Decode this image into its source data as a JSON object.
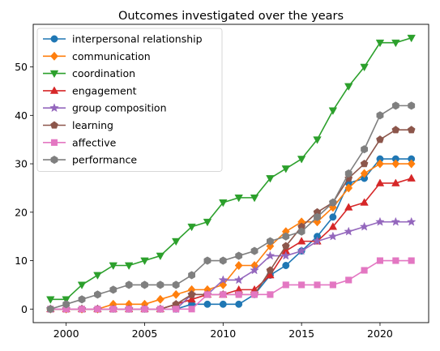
{
  "chart_data": {
    "type": "line",
    "title": "Outcomes investigated over the years",
    "xlabel": "",
    "ylabel": "",
    "xlim": [
      1997.9,
      2023.1
    ],
    "ylim": [
      -2.8,
      58.8
    ],
    "x_ticks": [
      2000,
      2005,
      2010,
      2015,
      2020
    ],
    "y_ticks": [
      0,
      10,
      20,
      30,
      40,
      50
    ],
    "grid": false,
    "legend_position": "upper-left",
    "x": [
      1999,
      2000,
      2001,
      2002,
      2003,
      2004,
      2005,
      2006,
      2007,
      2008,
      2009,
      2010,
      2011,
      2012,
      2013,
      2014,
      2015,
      2016,
      2017,
      2018,
      2019,
      2020,
      2021,
      2022
    ],
    "series": [
      {
        "name": "interpersonal relationship",
        "color": "#1f77b4",
        "marker": "circle",
        "values": [
          0,
          0,
          0,
          0,
          0,
          0,
          0,
          0,
          0,
          1,
          1,
          1,
          1,
          3,
          7,
          9,
          12,
          15,
          19,
          26,
          27,
          31,
          31,
          31
        ]
      },
      {
        "name": "communication",
        "color": "#ff7f0e",
        "marker": "diamond",
        "values": [
          0,
          0,
          0,
          0,
          1,
          1,
          1,
          2,
          3,
          4,
          4,
          5,
          9,
          9,
          13,
          16,
          18,
          18,
          21,
          25,
          28,
          30,
          30,
          30
        ]
      },
      {
        "name": "coordination",
        "color": "#2ca02c",
        "marker": "triangle-down",
        "values": [
          2,
          2,
          5,
          7,
          9,
          9,
          10,
          11,
          14,
          17,
          18,
          22,
          23,
          23,
          27,
          29,
          31,
          35,
          41,
          46,
          50,
          55,
          55,
          56
        ]
      },
      {
        "name": "engagement",
        "color": "#d62728",
        "marker": "triangle-up",
        "values": [
          0,
          0,
          0,
          0,
          0,
          0,
          0,
          0,
          1,
          2,
          3,
          3,
          4,
          4,
          7,
          12,
          14,
          14,
          17,
          21,
          22,
          26,
          26,
          27
        ]
      },
      {
        "name": "group composition",
        "color": "#9467bd",
        "marker": "star",
        "values": [
          0,
          0,
          0,
          0,
          0,
          0,
          0,
          0,
          0,
          3,
          3,
          6,
          6,
          8,
          11,
          11,
          12,
          14,
          15,
          16,
          17,
          18,
          18,
          18
        ]
      },
      {
        "name": "learning",
        "color": "#8c564b",
        "marker": "pentagon",
        "values": [
          0,
          0,
          0,
          0,
          0,
          0,
          0,
          0,
          1,
          3,
          3,
          3,
          3,
          3,
          8,
          13,
          17,
          20,
          22,
          27,
          30,
          35,
          37,
          37
        ]
      },
      {
        "name": "affective",
        "color": "#e377c2",
        "marker": "square",
        "values": [
          0,
          0,
          0,
          0,
          0,
          0,
          0,
          0,
          0,
          0,
          3,
          3,
          3,
          3,
          3,
          5,
          5,
          5,
          5,
          6,
          8,
          10,
          10,
          10
        ]
      },
      {
        "name": "performance",
        "color": "#7f7f7f",
        "marker": "hexagon",
        "values": [
          0,
          1,
          2,
          3,
          4,
          5,
          5,
          5,
          5,
          7,
          10,
          10,
          11,
          12,
          14,
          15,
          16,
          19,
          22,
          28,
          33,
          40,
          42,
          42
        ]
      }
    ]
  }
}
